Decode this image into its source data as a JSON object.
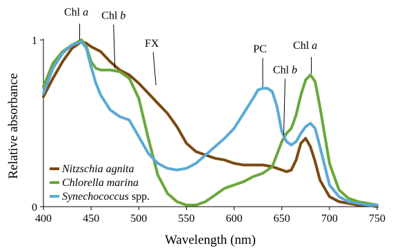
{
  "chart_data": {
    "type": "line",
    "xlabel": "Wavelength (nm)",
    "ylabel": "Relative absorbance",
    "xlim": [
      400,
      750
    ],
    "ylim": [
      0,
      1
    ],
    "xticks": [
      400,
      450,
      500,
      550,
      600,
      650,
      700,
      750
    ],
    "yticks": [
      0,
      1
    ],
    "grid": false,
    "legend_position": "bottom-left",
    "series": [
      {
        "name": "Nitzschia agnita",
        "name_italic": "Nitzschia agnita",
        "name_suffix": "",
        "color": "#7b4a12",
        "x": [
          400,
          410,
          420,
          430,
          440,
          445,
          450,
          460,
          470,
          480,
          490,
          500,
          510,
          520,
          530,
          540,
          550,
          560,
          570,
          580,
          590,
          600,
          610,
          620,
          630,
          640,
          650,
          655,
          660,
          665,
          670,
          675,
          680,
          685,
          690,
          700,
          710,
          720,
          730,
          740,
          750
        ],
        "y": [
          0.66,
          0.77,
          0.87,
          0.95,
          0.99,
          0.98,
          0.96,
          0.93,
          0.87,
          0.82,
          0.79,
          0.74,
          0.68,
          0.62,
          0.56,
          0.48,
          0.38,
          0.33,
          0.31,
          0.29,
          0.28,
          0.26,
          0.25,
          0.25,
          0.25,
          0.24,
          0.22,
          0.21,
          0.22,
          0.28,
          0.38,
          0.41,
          0.36,
          0.27,
          0.16,
          0.06,
          0.03,
          0.02,
          0.01,
          0.01,
          0.0
        ]
      },
      {
        "name": "Chlorella marina",
        "name_italic": "Chlorella marina",
        "name_suffix": "",
        "color": "#6aa73a",
        "x": [
          400,
          410,
          420,
          430,
          440,
          445,
          450,
          455,
          460,
          470,
          480,
          490,
          500,
          510,
          520,
          530,
          540,
          550,
          560,
          570,
          580,
          590,
          600,
          610,
          620,
          630,
          640,
          650,
          655,
          660,
          665,
          670,
          675,
          680,
          685,
          690,
          700,
          710,
          720,
          730,
          740,
          750
        ],
        "y": [
          0.72,
          0.86,
          0.93,
          0.97,
          1.0,
          0.96,
          0.87,
          0.83,
          0.82,
          0.82,
          0.81,
          0.77,
          0.65,
          0.41,
          0.19,
          0.08,
          0.03,
          0.01,
          0.01,
          0.03,
          0.07,
          0.11,
          0.13,
          0.15,
          0.18,
          0.2,
          0.24,
          0.39,
          0.44,
          0.47,
          0.55,
          0.67,
          0.76,
          0.79,
          0.75,
          0.6,
          0.26,
          0.1,
          0.05,
          0.03,
          0.02,
          0.01
        ]
      },
      {
        "name": "Synechococcus spp.",
        "name_italic": "Synechococcus",
        "name_suffix": " spp.",
        "color": "#5aaad6",
        "x": [
          400,
          410,
          420,
          430,
          440,
          445,
          450,
          455,
          460,
          470,
          480,
          490,
          500,
          510,
          520,
          530,
          540,
          550,
          560,
          570,
          580,
          590,
          600,
          610,
          620,
          625,
          630,
          635,
          640,
          645,
          650,
          655,
          660,
          665,
          670,
          675,
          680,
          685,
          690,
          700,
          710,
          720,
          730,
          740,
          750
        ],
        "y": [
          0.68,
          0.83,
          0.92,
          0.97,
          0.99,
          0.95,
          0.84,
          0.74,
          0.67,
          0.58,
          0.54,
          0.52,
          0.42,
          0.32,
          0.26,
          0.23,
          0.22,
          0.23,
          0.26,
          0.31,
          0.36,
          0.41,
          0.47,
          0.56,
          0.65,
          0.7,
          0.71,
          0.71,
          0.69,
          0.6,
          0.45,
          0.39,
          0.37,
          0.39,
          0.44,
          0.48,
          0.5,
          0.47,
          0.36,
          0.13,
          0.06,
          0.03,
          0.02,
          0.01,
          0.01
        ]
      }
    ],
    "annotations": [
      {
        "prefix": "Chl ",
        "italic": "a",
        "x": 438,
        "y": 0.99
      },
      {
        "prefix": "Chl ",
        "italic": "b",
        "x": 475,
        "y": 0.82
      },
      {
        "prefix": "FX",
        "italic": "",
        "x": 518,
        "y": 0.72
      },
      {
        "prefix": "PC",
        "italic": "",
        "x": 630,
        "y": 0.71
      },
      {
        "prefix": "Chl ",
        "italic": "b",
        "x": 652,
        "y": 0.42
      },
      {
        "prefix": "Chl ",
        "italic": "a",
        "x": 681,
        "y": 0.79
      }
    ]
  }
}
